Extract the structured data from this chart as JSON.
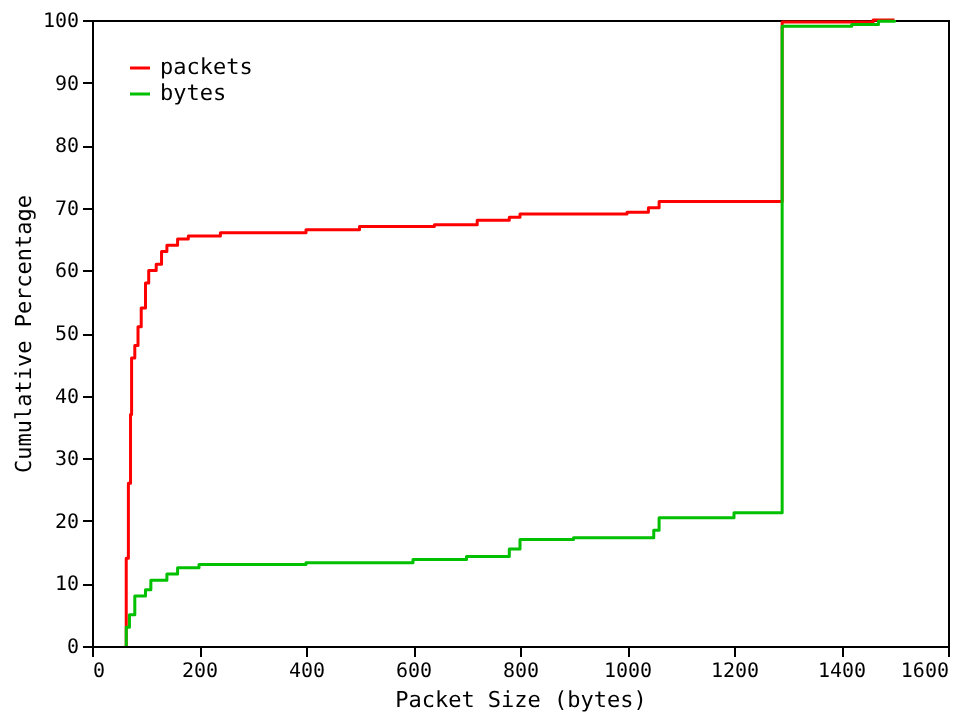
{
  "chart_data": {
    "type": "step",
    "xlabel": "Packet Size (bytes)",
    "ylabel": "Cumulative Percentage",
    "xlim": [
      0,
      1600
    ],
    "xticks": [
      0,
      200,
      400,
      600,
      800,
      1000,
      1200,
      1400,
      1600
    ],
    "ylim": [
      0,
      100
    ],
    "yticks": [
      0,
      10,
      20,
      30,
      40,
      50,
      60,
      70,
      80,
      90,
      100
    ],
    "grid": false,
    "legend": "top left",
    "line_style": "solid",
    "marker": "none",
    "series": [
      {
        "name": "packets",
        "color": "#ff0000",
        "x": [
          64,
          64,
          68,
          72,
          74,
          80,
          86,
          92,
          100,
          106,
          120,
          130,
          140,
          160,
          180,
          240,
          400,
          500,
          640,
          720,
          780,
          800,
          1000,
          1040,
          1060,
          1290,
          1290,
          1460,
          1500
        ],
        "values": [
          0,
          14,
          26,
          37,
          46,
          48,
          51,
          54,
          58,
          60,
          61,
          63,
          64,
          65,
          65.5,
          66,
          66.5,
          67,
          67.3,
          68,
          68.5,
          69,
          69.3,
          70,
          71,
          71,
          99.7,
          100,
          100
        ]
      },
      {
        "name": "bytes",
        "color": "#00c000",
        "x": [
          64,
          64,
          70,
          80,
          100,
          110,
          140,
          160,
          200,
          400,
          600,
          700,
          780,
          800,
          900,
          1050,
          1060,
          1200,
          1290,
          1290,
          1420,
          1470,
          1500
        ],
        "values": [
          0,
          3,
          5,
          8,
          9,
          10.5,
          11.5,
          12.5,
          13,
          13.3,
          13.8,
          14.3,
          15.5,
          17,
          17.3,
          18.5,
          20.5,
          21.3,
          21.3,
          99,
          99.3,
          99.8,
          100
        ]
      }
    ]
  }
}
